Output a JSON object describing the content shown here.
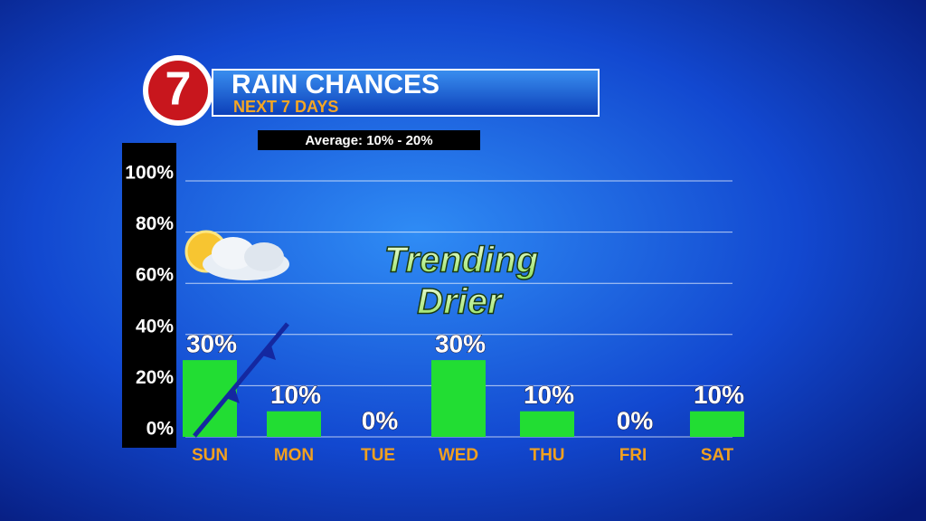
{
  "chart_data": {
    "type": "bar",
    "logo": "7",
    "title": "RAIN CHANCES",
    "subtitle": "NEXT 7 DAYS",
    "annotations": [
      "Average: 10% - 20%",
      "Trending",
      "Drier"
    ],
    "categories": [
      "SUN",
      "MON",
      "TUE",
      "WED",
      "THU",
      "FRI",
      "SAT"
    ],
    "values": [
      30,
      10,
      0,
      30,
      10,
      0,
      10
    ],
    "value_labels": [
      "30%",
      "10%",
      "0%",
      "30%",
      "10%",
      "0%",
      "10%"
    ],
    "color": "#22dd33",
    "ylim": [
      0,
      100
    ],
    "yticks": [
      {
        "value": 0,
        "label": "0%"
      },
      {
        "value": 20,
        "label": "20%"
      },
      {
        "value": 40,
        "label": "40%"
      },
      {
        "value": 60,
        "label": "60%"
      },
      {
        "value": 80,
        "label": "80%"
      },
      {
        "value": 100,
        "label": "100%"
      }
    ],
    "grid": true
  }
}
